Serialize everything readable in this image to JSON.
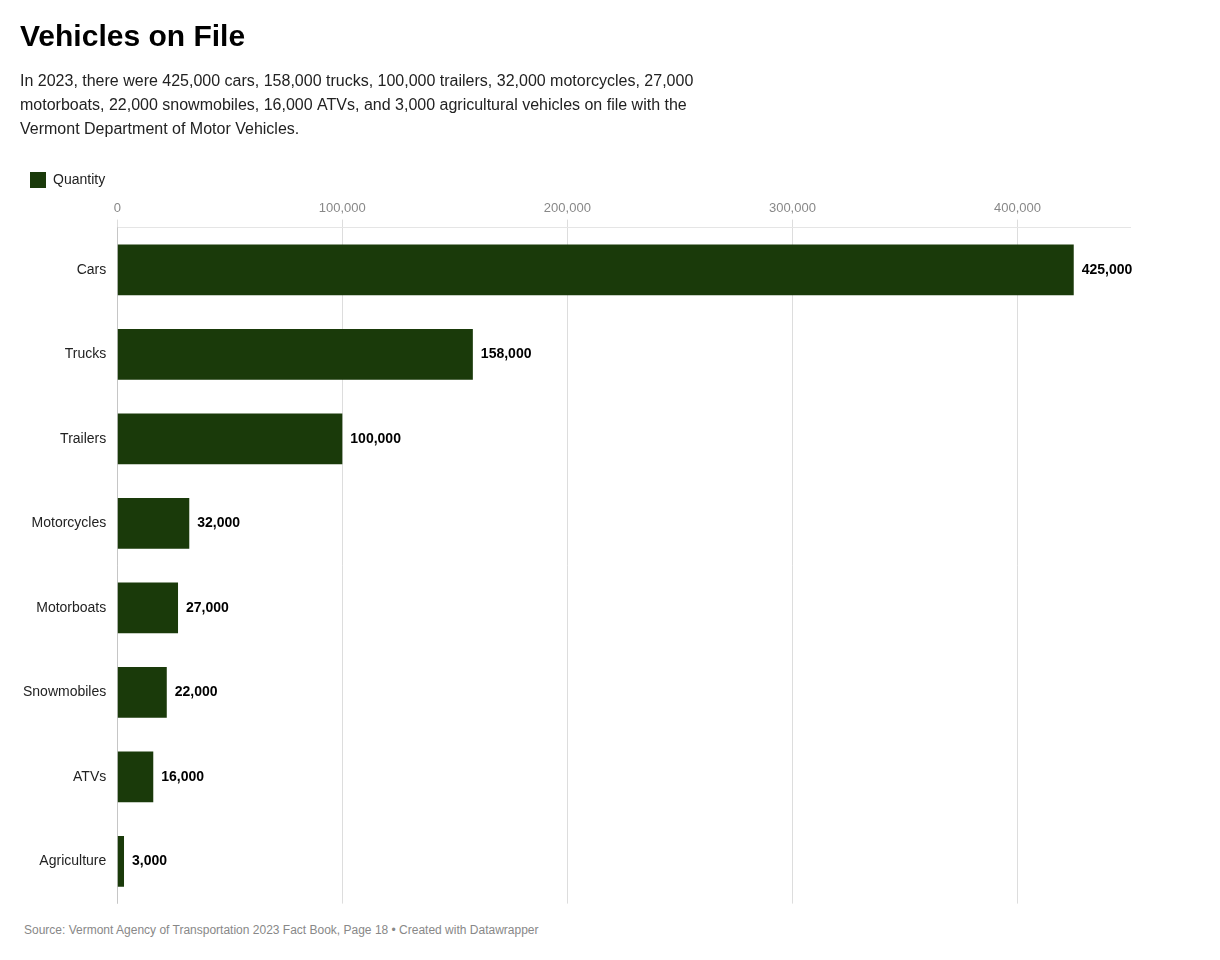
{
  "chart_data": {
    "type": "bar",
    "orientation": "horizontal",
    "title": "Vehicles on File",
    "subtitle": "In 2023, there were 425,000 cars, 158,000 trucks, 100,000 trailers, 32,000 motorcycles, 27,000\nmotorboats, 22,000 snowmobiles, 16,000 ATVs, and 3,000 agricultural vehicles on file with the\nVermont Department of Motor Vehicles.",
    "source": "Source: Vermont Agency of Transportation 2023 Fact Book, Page 18 • Created with Datawrapper",
    "categories": [
      "Cars",
      "Trucks",
      "Trailers",
      "Motorcycles",
      "Motorboats",
      "Snowmobiles",
      "ATVs",
      "Agriculture"
    ],
    "series": [
      {
        "name": "Quantity",
        "color": "#1a3a0a",
        "values": [
          425000,
          158000,
          100000,
          32000,
          27000,
          22000,
          16000,
          3000
        ],
        "value_labels": [
          "425,000",
          "158,000",
          "100,000",
          "32,000",
          "27,000",
          "22,000",
          "16,000",
          "3,000"
        ]
      }
    ],
    "xlim": [
      0,
      450000
    ],
    "xticks": [
      0,
      {
        "value": 100000,
        "label": "100,000"
      },
      {
        "value": 200000,
        "label": "200,000"
      },
      {
        "value": 300000,
        "label": "300,000"
      },
      {
        "value": 400000,
        "label": "400,000"
      }
    ],
    "grid": true,
    "legend": "top",
    "data_labels": true
  }
}
